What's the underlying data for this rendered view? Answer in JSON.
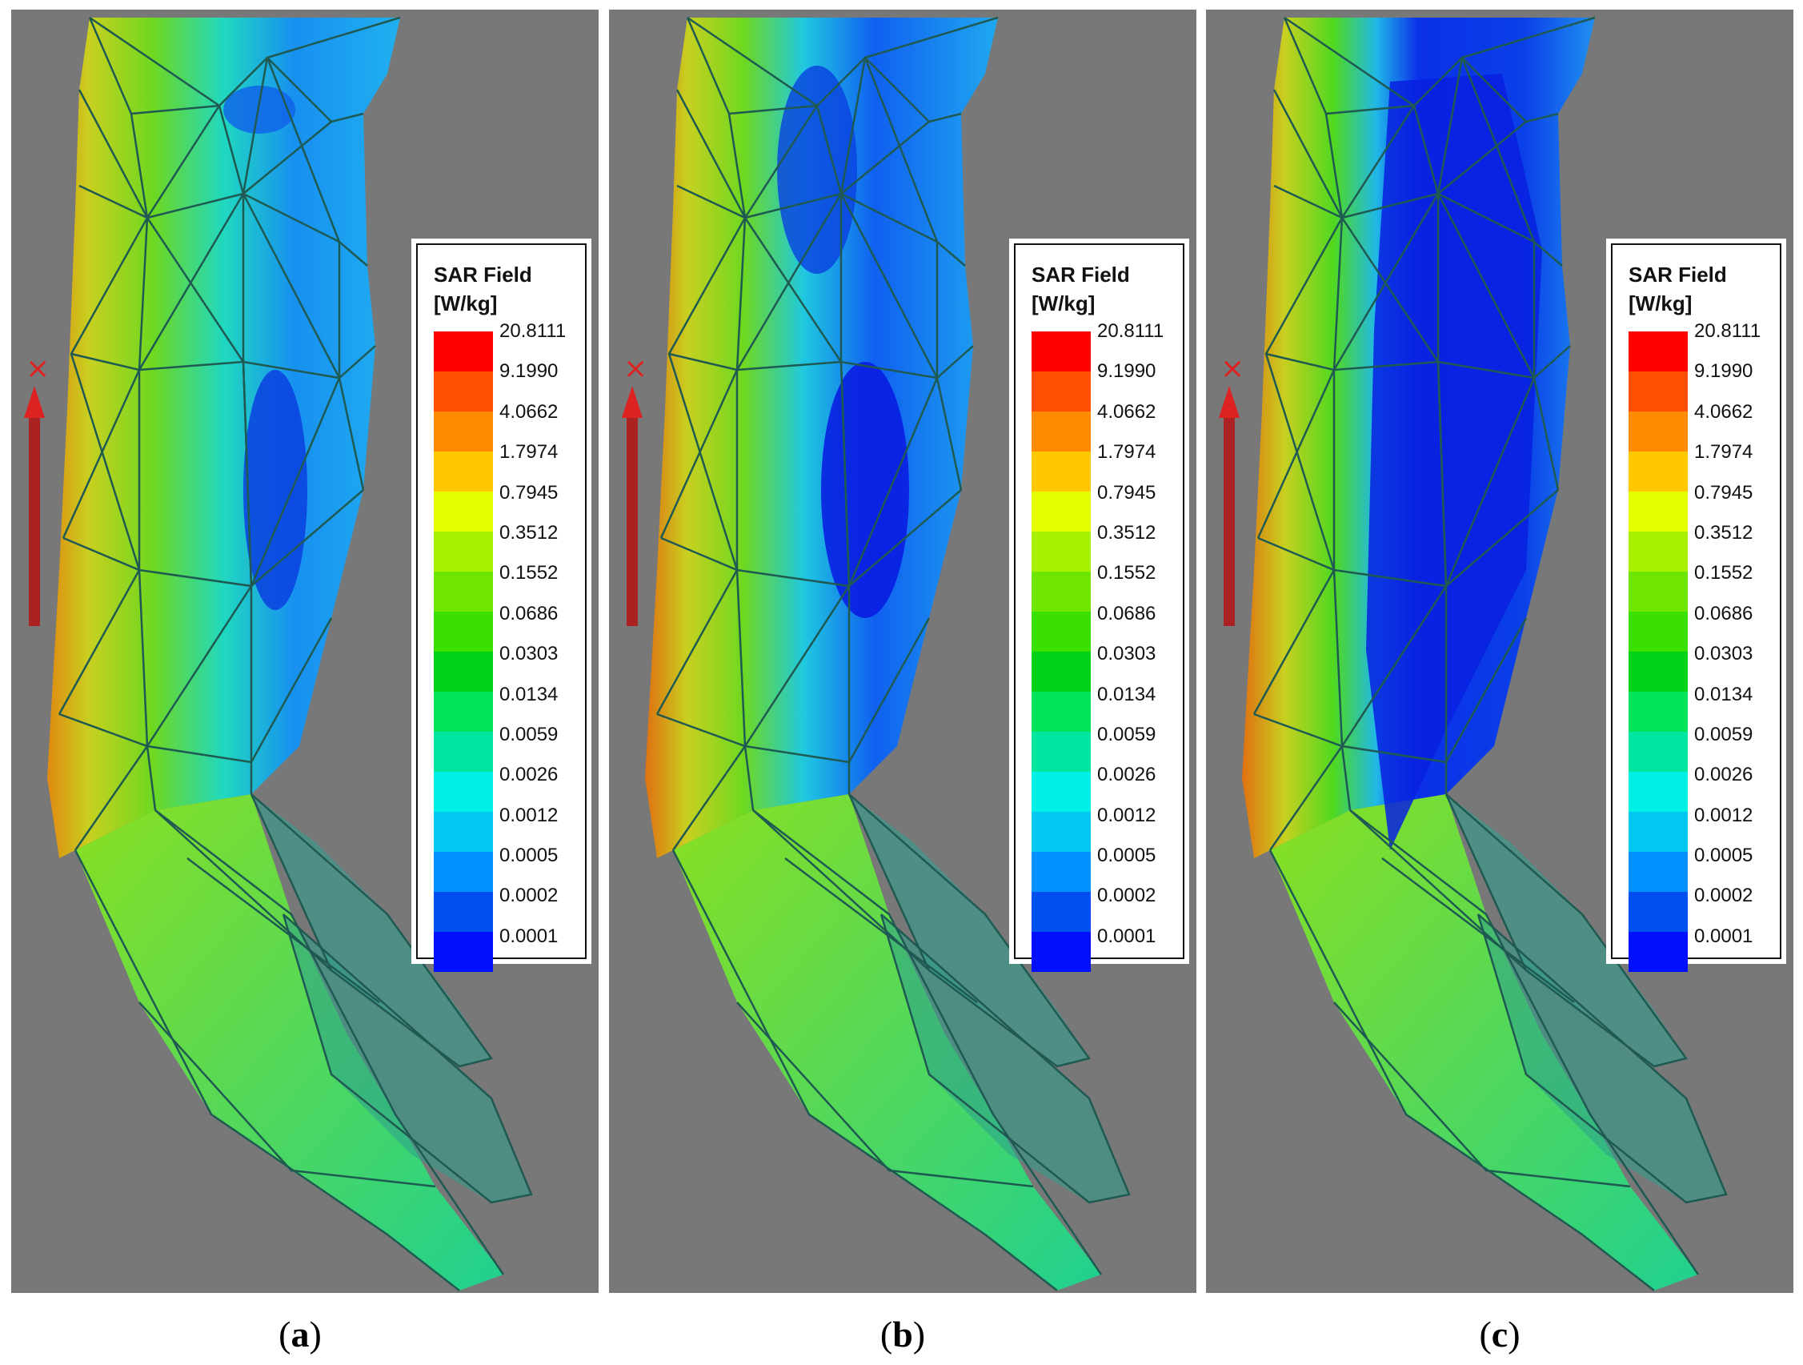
{
  "legend": {
    "title": "SAR Field",
    "unit": "[W/kg]",
    "values": [
      "20.8111",
      "9.1990",
      "4.0662",
      "1.7974",
      "0.7945",
      "0.3512",
      "0.1552",
      "0.0686",
      "0.0303",
      "0.0134",
      "0.0059",
      "0.0026",
      "0.0012",
      "0.0005",
      "0.0002",
      "0.0001"
    ],
    "colors": [
      "#ff0000",
      "#ff4f00",
      "#ff8c00",
      "#ffc800",
      "#e6ff00",
      "#a8f000",
      "#6ee600",
      "#3ae000",
      "#00d218",
      "#00e35a",
      "#00e6a0",
      "#00f0e6",
      "#00c8f0",
      "#0090ff",
      "#0050f0",
      "#0010ff"
    ]
  },
  "panels": [
    {
      "id": "a",
      "caption_open": "(",
      "caption_letter": "a",
      "caption_close": ")"
    },
    {
      "id": "b",
      "caption_open": "(",
      "caption_letter": "b",
      "caption_close": ")"
    },
    {
      "id": "c",
      "caption_open": "(",
      "caption_letter": "c",
      "caption_close": ")"
    }
  ]
}
